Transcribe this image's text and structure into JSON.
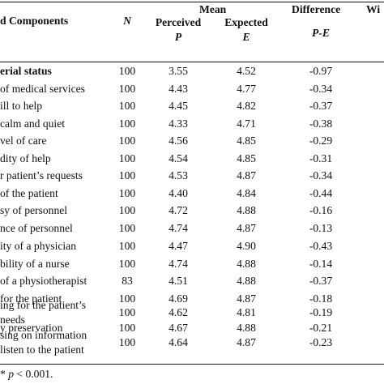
{
  "header": {
    "components": "d Components",
    "n": "N",
    "mean": "Mean",
    "difference": "Difference",
    "wil": "Wi",
    "perceived": "Perceived",
    "p_symbol": "P",
    "expected": "Expected",
    "e_symbol": "E",
    "pe": "P-E"
  },
  "rows": [
    {
      "label": "erial status",
      "n": "100",
      "p": "3.55",
      "e": "4.52",
      "d": "-0.97",
      "bold": true
    },
    {
      "label": "of medical services",
      "n": "100",
      "p": "4.43",
      "e": "4.77",
      "d": "-0.34"
    },
    {
      "label": "ill to help",
      "n": "100",
      "p": "4.45",
      "e": "4.82",
      "d": "-0.37"
    },
    {
      "label": "calm and quiet",
      "n": "100",
      "p": "4.33",
      "e": "4.71",
      "d": "-0.38"
    },
    {
      "label": "vel of care",
      "n": "100",
      "p": "4.56",
      "e": "4.85",
      "d": "-0.29"
    },
    {
      "label": "dity of help",
      "n": "100",
      "p": "4.54",
      "e": "4.85",
      "d": "-0.31"
    },
    {
      "label": "r patient’s requests",
      "n": "100",
      "p": "4.53",
      "e": "4.87",
      "d": "-0.34"
    },
    {
      "label": "of the patient",
      "n": "100",
      "p": "4.40",
      "e": "4.84",
      "d": "-0.44"
    },
    {
      "label": "sy of personnel",
      "n": "100",
      "p": "4.72",
      "e": "4.88",
      "d": "-0.16"
    },
    {
      "label": "nce of personnel",
      "n": "100",
      "p": "4.74",
      "e": "4.87",
      "d": "-0.13"
    },
    {
      "label": "ity of a physician",
      "n": "100",
      "p": "4.47",
      "e": "4.90",
      "d": "-0.43"
    },
    {
      "label": "bility of a nurse",
      "n": "100",
      "p": "4.74",
      "e": "4.88",
      "d": "-0.14"
    },
    {
      "label": "of a physiotherapist",
      "n": "83",
      "p": "4.51",
      "e": "4.88",
      "d": "-0.37"
    },
    {
      "label": "for the patient",
      "n": "100",
      "p": "4.69",
      "e": "4.87",
      "d": "-0.18"
    },
    {
      "label": "ing for the patient’s",
      "label2": "needs",
      "n": "100",
      "p": "4.62",
      "e": "4.81",
      "d": "-0.19"
    },
    {
      "label": "y preservation",
      "n": "100",
      "p": "4.67",
      "e": "4.88",
      "d": "-0.21"
    },
    {
      "label": "sing on information",
      "label2": "listen to the patient",
      "n": "100",
      "p": "4.64",
      "e": "4.87",
      "d": "-0.23"
    }
  ],
  "footnote": {
    "star": "*",
    "p": "p",
    "text": " < 0.001."
  }
}
